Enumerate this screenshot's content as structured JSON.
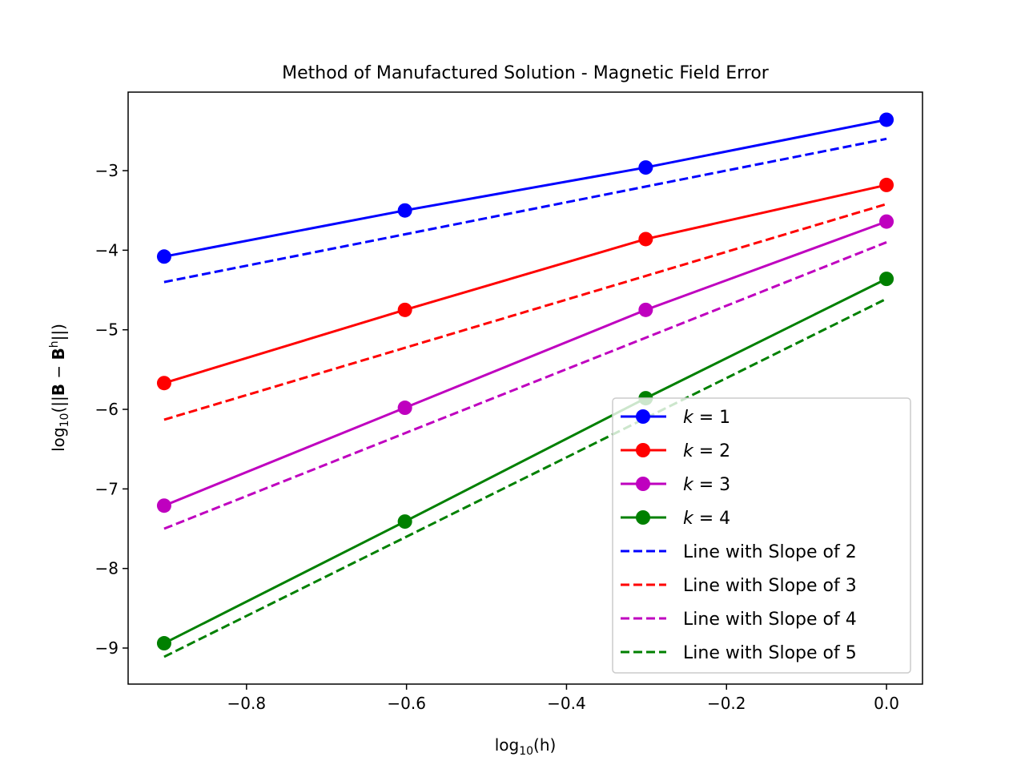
{
  "chart_data": {
    "type": "line",
    "title": "Method of Manufactured Solution - Magnetic Field Error",
    "xlabel": {
      "base": "log",
      "sub": "10",
      "rest": "(h)"
    },
    "ylabel": {
      "base": "log",
      "sub": "10",
      "open": "(||",
      "B": "B",
      "minus": " − ",
      "Bh": "B",
      "sup": "h",
      "close": "||)"
    },
    "xlim": [
      -0.948,
      0.045
    ],
    "ylim": [
      -9.453,
      -2.013
    ],
    "xticks": [
      -0.8,
      -0.6,
      -0.4,
      -0.2,
      0.0
    ],
    "xtick_labels": [
      "−0.8",
      "−0.6",
      "−0.4",
      "−0.2",
      "0.0"
    ],
    "yticks": [
      -9,
      -8,
      -7,
      -6,
      -5,
      -4,
      -3
    ],
    "ytick_labels": [
      "−9",
      "−8",
      "−7",
      "−6",
      "−5",
      "−4",
      "−3"
    ],
    "x": [
      -0.903,
      -0.602,
      -0.301,
      0.0
    ],
    "series": [
      {
        "name": "k = 1",
        "k": "k",
        "eq": " = 1",
        "color": "#0000ff",
        "style": "solid-marker",
        "values": [
          -4.08,
          -3.5,
          -2.96,
          -2.36
        ]
      },
      {
        "name": "k = 2",
        "k": "k",
        "eq": " = 2",
        "color": "#ff0000",
        "style": "solid-marker",
        "values": [
          -5.67,
          -4.75,
          -3.86,
          -3.18
        ]
      },
      {
        "name": "k = 3",
        "k": "k",
        "eq": " = 3",
        "color": "#bf00bf",
        "style": "solid-marker",
        "values": [
          -7.21,
          -5.98,
          -4.75,
          -3.64
        ]
      },
      {
        "name": "k = 4",
        "k": "k",
        "eq": " = 4",
        "color": "#008000",
        "style": "solid-marker",
        "values": [
          -8.94,
          -7.41,
          -5.86,
          -4.36
        ]
      },
      {
        "name": "Line with Slope of 2",
        "color": "#0000ff",
        "style": "dashed",
        "x": [
          -0.903,
          0.0
        ],
        "values": [
          -4.4,
          -2.6
        ]
      },
      {
        "name": "Line with Slope of 3",
        "color": "#ff0000",
        "style": "dashed",
        "x": [
          -0.903,
          0.0
        ],
        "values": [
          -6.13,
          -3.42
        ]
      },
      {
        "name": "Line with Slope of 4",
        "color": "#bf00bf",
        "style": "dashed",
        "x": [
          -0.903,
          0.0
        ],
        "values": [
          -7.5,
          -3.9
        ]
      },
      {
        "name": "Line with Slope of 5",
        "color": "#008000",
        "style": "dashed",
        "x": [
          -0.903,
          0.0
        ],
        "values": [
          -9.11,
          -4.61
        ]
      }
    ],
    "legend": "lower-right",
    "grid": false
  }
}
